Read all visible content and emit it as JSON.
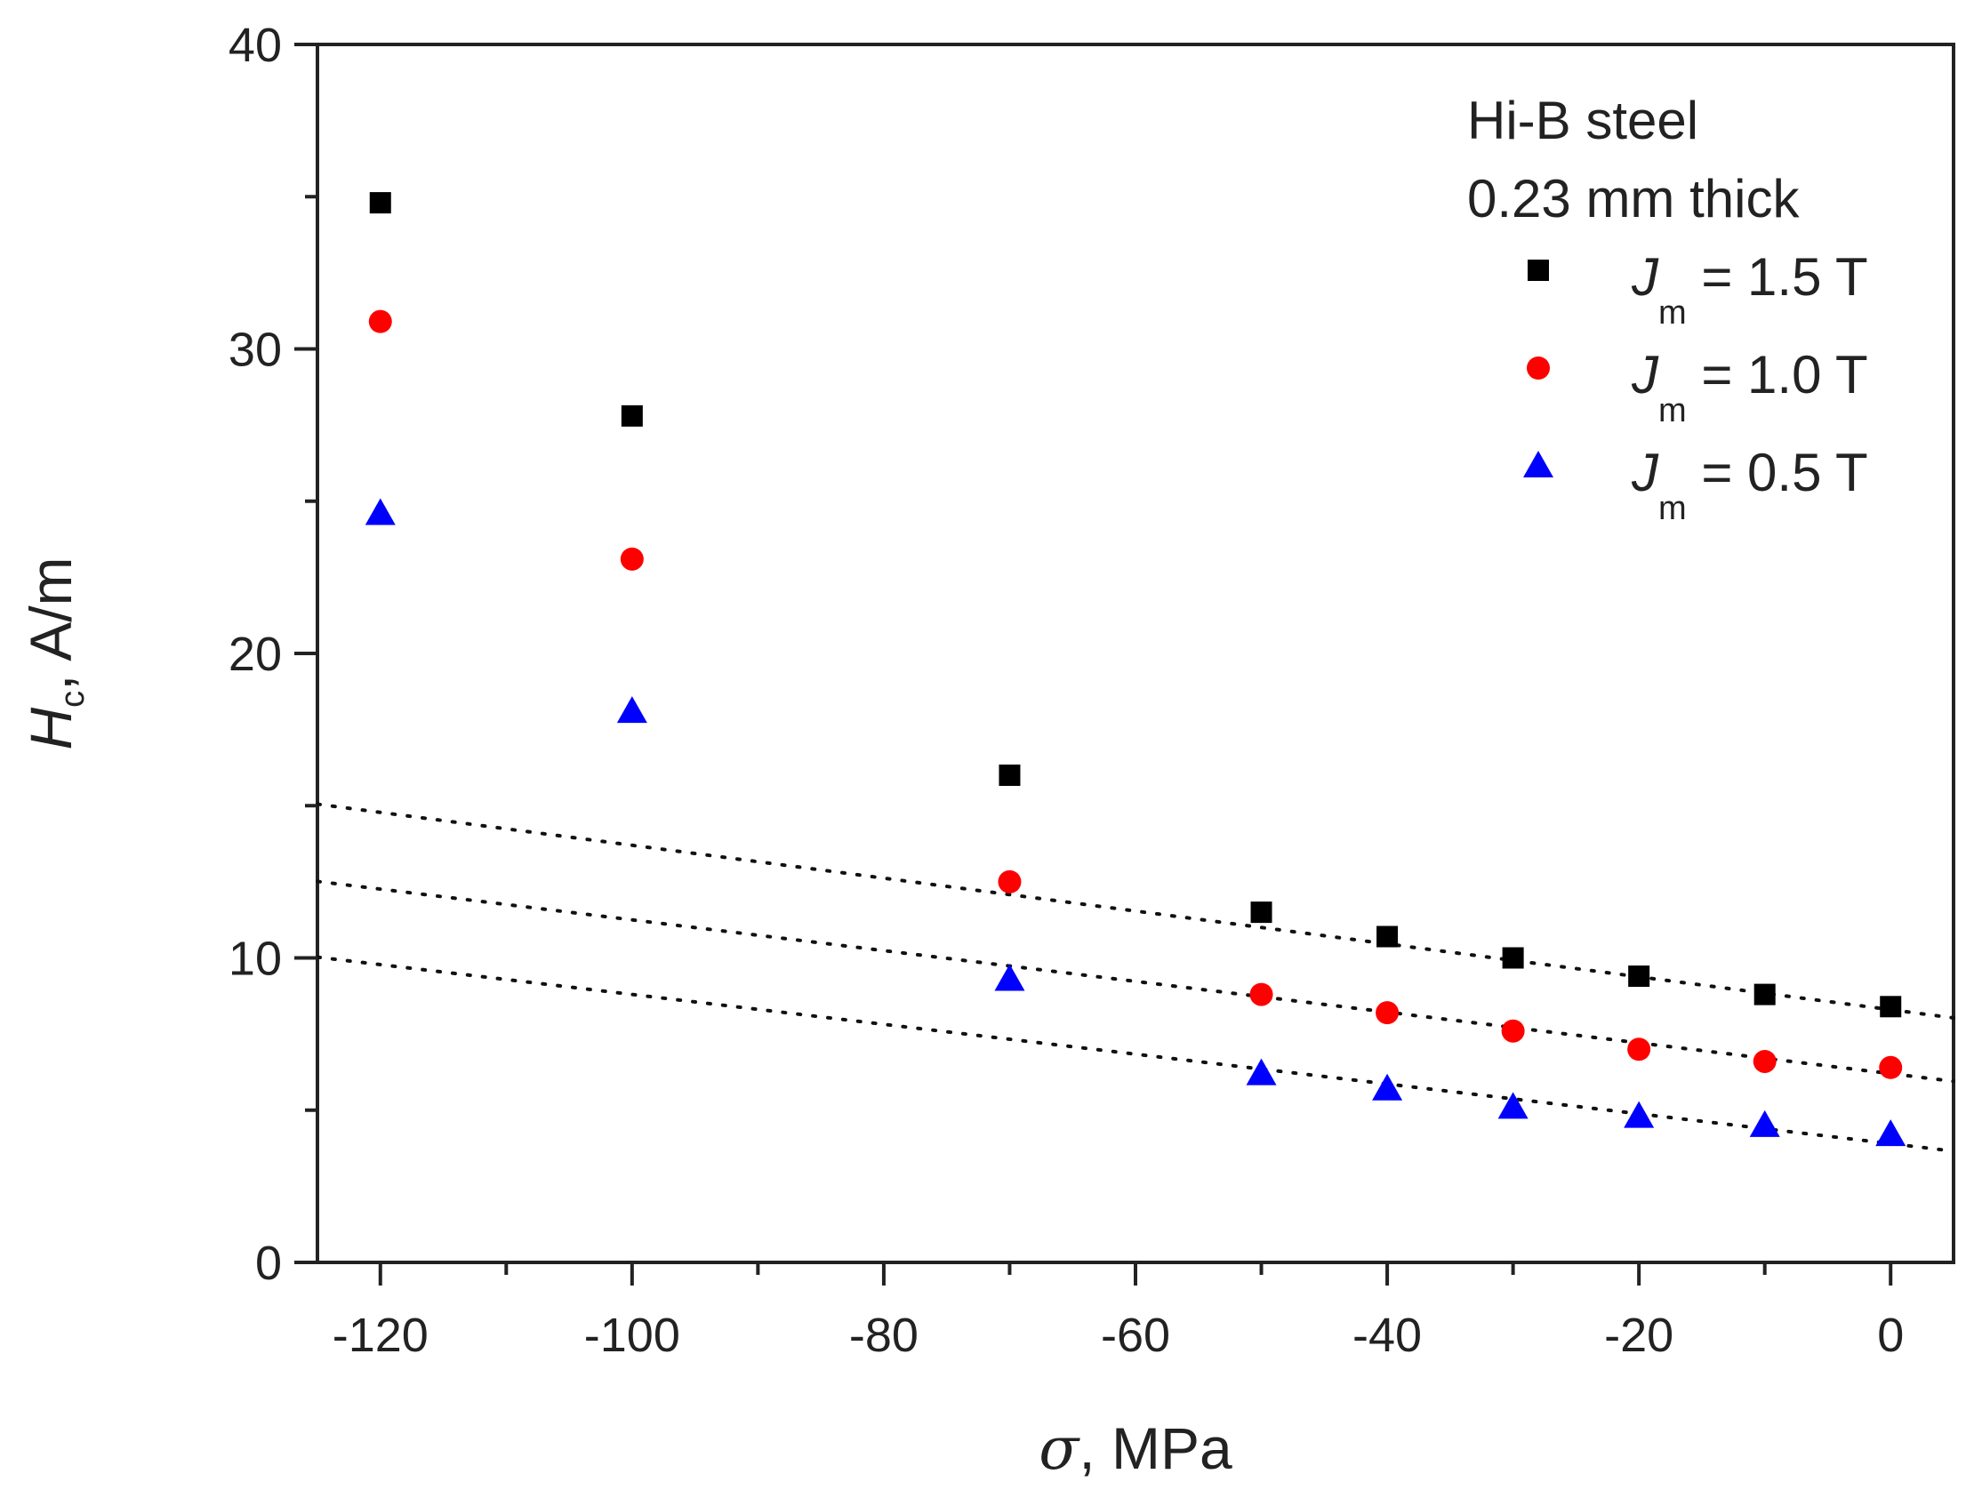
{
  "chart_data": {
    "type": "scatter",
    "title": "",
    "note_lines": [
      "Hi-B steel",
      "0.23 mm thick"
    ],
    "xlabel": {
      "symbol": "σ",
      "rest": ", MPa"
    },
    "ylabel": {
      "symbol": "H",
      "subscript": "c",
      "rest": ", A/m"
    },
    "xlim": [
      -125,
      5
    ],
    "ylim": [
      0,
      40
    ],
    "xticks": [
      -120,
      -100,
      -80,
      -60,
      -40,
      -20,
      0
    ],
    "xtick_labels": [
      "-120",
      "-100",
      "-80",
      "-60",
      "-40",
      "-20",
      "0"
    ],
    "yticks": [
      0,
      10,
      20,
      30,
      40
    ],
    "ytick_labels": [
      "0",
      "10",
      "20",
      "30",
      "40"
    ],
    "legend_position": "top-right",
    "x": [
      -120,
      -100,
      -70,
      -50,
      -40,
      -30,
      -20,
      -10,
      0
    ],
    "series": [
      {
        "name": "J_m = 1.5 T",
        "label_symbol": "J",
        "label_sub": "m",
        "label_rest": " = 1.5 T",
        "marker": "square",
        "color": "#000000",
        "values": [
          34.8,
          27.8,
          16.0,
          11.5,
          10.7,
          10.0,
          9.4,
          8.8,
          8.4
        ],
        "trend": {
          "intercept": 8.3,
          "slope": -0.054
        }
      },
      {
        "name": "J_m = 1.0 T",
        "label_symbol": "J",
        "label_sub": "m",
        "label_rest": " = 1.0 T",
        "marker": "circle",
        "color": "#ff0000",
        "values": [
          30.9,
          23.1,
          12.5,
          8.8,
          8.2,
          7.6,
          7.0,
          6.6,
          6.4
        ],
        "trend": {
          "intercept": 6.2,
          "slope": -0.0505
        }
      },
      {
        "name": "J_m = 0.5 T",
        "label_symbol": "J",
        "label_sub": "m",
        "label_rest": " = 0.5 T",
        "marker": "triangle",
        "color": "#0000ff",
        "values": [
          24.6,
          18.1,
          9.3,
          6.2,
          5.7,
          5.1,
          4.8,
          4.5,
          4.2
        ],
        "trend": {
          "intercept": 3.9,
          "slope": -0.049
        }
      }
    ]
  }
}
